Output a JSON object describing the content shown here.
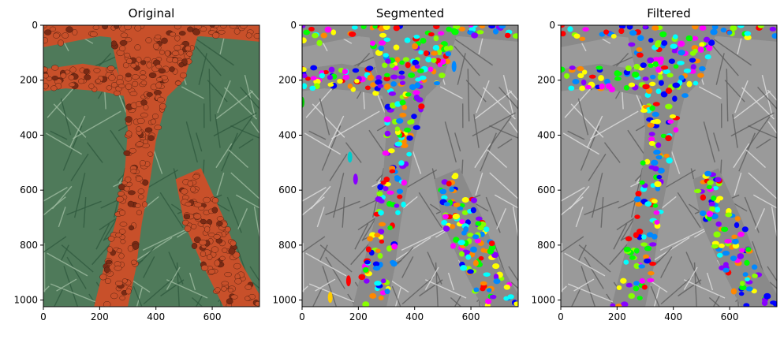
{
  "panels": [
    {
      "title": "Original",
      "mode": "photo",
      "x_ticks": [
        "0",
        "200",
        "400",
        "600"
      ],
      "y_ticks": [
        "0",
        "200",
        "400",
        "600",
        "800",
        "1000"
      ]
    },
    {
      "title": "Segmented",
      "mode": "segmented",
      "x_ticks": [
        "0",
        "200",
        "400",
        "600"
      ],
      "y_ticks": [
        "0",
        "200",
        "400",
        "600",
        "800",
        "1000"
      ]
    },
    {
      "title": "Filtered",
      "mode": "filtered",
      "x_ticks": [
        "0",
        "200",
        "400",
        "600"
      ],
      "y_ticks": [
        "0",
        "200",
        "400",
        "600",
        "800",
        "1000"
      ]
    }
  ],
  "image_extent": {
    "x": [
      0,
      768
    ],
    "y": [
      0,
      1024
    ]
  },
  "x_tick_values": [
    0,
    200,
    400,
    600
  ],
  "y_tick_values": [
    0,
    200,
    400,
    600,
    800,
    1000
  ],
  "colors": {
    "ladybug": "#c8502a",
    "ladybug_dark": "#7a2a14",
    "foliage": "#4f7a5a",
    "foliage_light": "#9dbba0",
    "gray_bg": "#9a9a9a",
    "gray_light": "#e0e0e0",
    "segment_palette": [
      "#ff00ff",
      "#00ff00",
      "#0000ff",
      "#ffff00",
      "#00ffff",
      "#ff0000",
      "#ff8800",
      "#8800ff",
      "#88ff00",
      "#0088ff"
    ]
  }
}
